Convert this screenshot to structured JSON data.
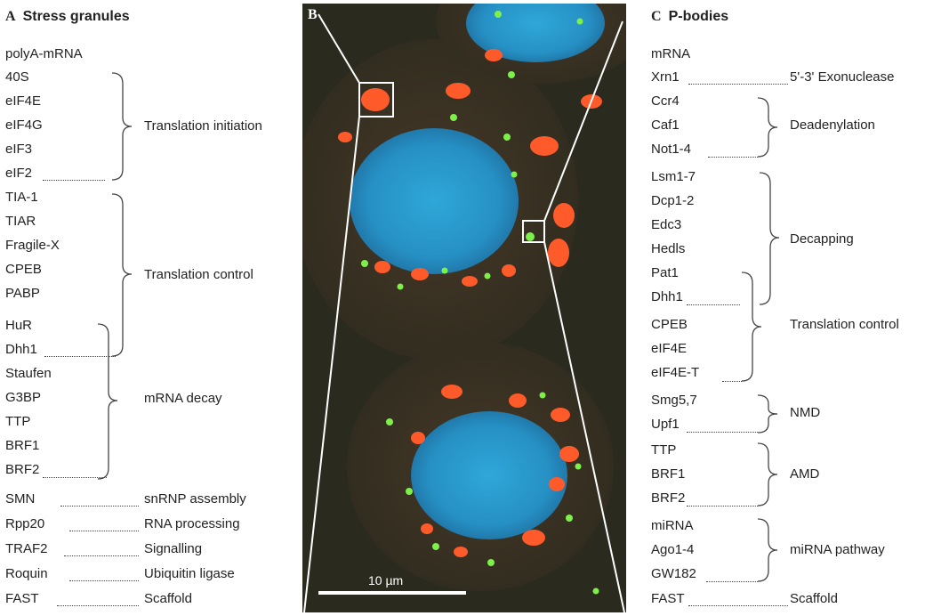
{
  "panelA": {
    "letter": "A",
    "title": "Stress granules",
    "items": [
      "polyA-mRNA",
      "40S",
      "eIF4E",
      "eIF4G",
      "eIF3",
      "eIF2",
      "TIA-1",
      "TIAR",
      "Fragile-X",
      "CPEB",
      "PABP",
      "HuR",
      "Dhh1",
      "Staufen",
      "G3BP",
      "TTP",
      "BRF1",
      "BRF2",
      "SMN",
      "Rpp20",
      "TRAF2",
      "Roquin",
      "FAST"
    ],
    "groups": [
      "Translation initiation",
      "Translation control",
      "mRNA decay"
    ],
    "pairs": [
      "snRNP assembly",
      "RNA processing",
      "Signalling",
      "Ubiquitin ligase",
      "Scaffold"
    ]
  },
  "panelB": {
    "letter": "B",
    "scale_label": "10 µm",
    "channel_colors": {
      "nucleus": "#2a9fd0",
      "stress_granule": "#ff5a2a",
      "p_body": "#7ef04a",
      "background": "#2c2c20"
    }
  },
  "panelC": {
    "letter": "C",
    "title": "P-bodies",
    "items": [
      "mRNA",
      "Xrn1",
      "Ccr4",
      "Caf1",
      "Not1-4",
      "Lsm1-7",
      "Dcp1-2",
      "Edc3",
      "Hedls",
      "Pat1",
      "Dhh1",
      "CPEB",
      "eIF4E",
      "eIF4E-T",
      "Smg5,7",
      "Upf1",
      "TTP",
      "BRF1",
      "BRF2",
      "miRNA",
      "Ago1-4",
      "GW182",
      "FAST"
    ],
    "groups": [
      "5'-3' Exonuclease",
      "Deadenylation",
      "Decapping",
      "Translation control",
      "NMD",
      "AMD",
      "miRNA pathway",
      "Scaffold"
    ]
  }
}
